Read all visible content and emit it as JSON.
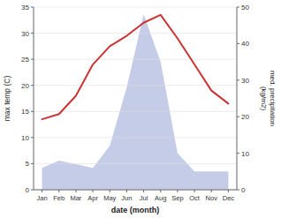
{
  "chart_data": {
    "type": "line",
    "categories": [
      "Jan",
      "Feb",
      "Mar",
      "Apr",
      "May",
      "Jun",
      "Jul",
      "Aug",
      "Sep",
      "Oct",
      "Nov",
      "Dec"
    ],
    "xlabel": "date (month)",
    "ylabel": "max temp (C)",
    "y2label": "med. precipitation\n(kg/m2)",
    "series": [
      {
        "type": "area",
        "axis": "y2",
        "color": "#c5cce8",
        "values": [
          6.0,
          8.0,
          7.0,
          6.0,
          12.0,
          28.0,
          48.0,
          35.0,
          10.0,
          5.0,
          5.0,
          5.0
        ]
      },
      {
        "type": "line",
        "color": "#cc3333",
        "values": [
          13.5,
          14.5,
          18.0,
          24.0,
          27.5,
          29.5,
          32.0,
          33.5,
          29.0,
          24.0,
          19.0,
          16.5
        ]
      }
    ],
    "ylim": [
      0,
      35
    ],
    "yticks": [
      0,
      5,
      10,
      15,
      20,
      25,
      30,
      35
    ],
    "y2lim": [
      0,
      50
    ],
    "y2ticks": [
      0,
      10,
      20,
      30,
      40,
      50
    ],
    "grid": true
  }
}
